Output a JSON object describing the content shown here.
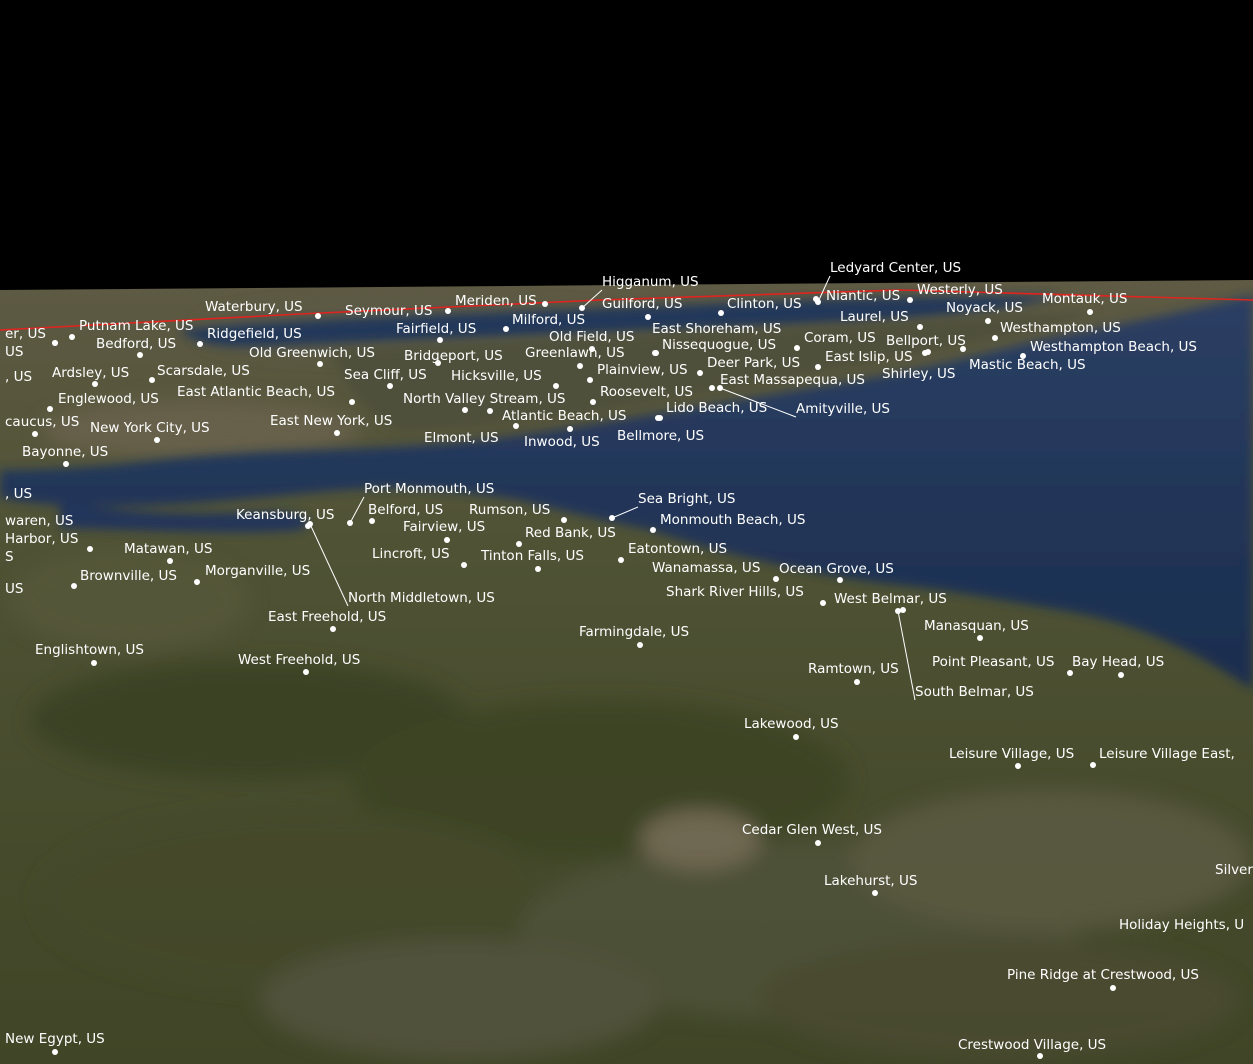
{
  "map": {
    "colors": {
      "sky": "#000000",
      "water": "#1f3558",
      "land": "#4a4c2c",
      "horizon_line": "#e0241f",
      "label": "#ffffff"
    },
    "places": [
      "Higganum, US",
      "Ledyard Center, US",
      "Waterbury, US",
      "Seymour, US",
      "Meriden, US",
      "Guilford, US",
      "Clinton, US",
      "Niantic, US",
      "Westerly, US",
      "Montauk, US",
      "er, US",
      "Putnam Lake, US",
      "Ridgefield, US",
      "Fairfield, US",
      "Milford, US",
      "Old Field, US",
      "East Shoreham, US",
      "Laurel, US",
      "Noyack, US",
      "Westhampton, US",
      "US",
      "Bedford, US",
      "Old Greenwich, US",
      "Bridgeport, US",
      "Greenlawn, US",
      "Nissequogue, US",
      "Coram, US",
      "Bellport, US",
      "Westhampton Beach, US",
      ", US",
      "Ardsley, US",
      "Scarsdale, US",
      "Sea Cliff, US",
      "Hicksville, US",
      "Plainview, US",
      "Deer Park, US",
      "East Islip, US",
      "Mastic Beach, US",
      "Shirley, US",
      "East Massapequa, US",
      "Englewood, US",
      "East Atlantic Beach, US",
      "North Valley Stream, US",
      "Roosevelt, US",
      "Amityville, US",
      "caucus, US",
      "New York City, US",
      "East New York, US",
      "Atlantic Beach, US",
      "Lido Beach, US",
      "Elmont, US",
      "Inwood, US",
      "Bellmore, US",
      "Bayonne, US",
      ", US",
      "Port Monmouth, US",
      "Sea Bright, US",
      "waren, US",
      "Keansburg, US",
      "Belford, US",
      "Rumson, US",
      "Monmouth Beach, US",
      "Fairview, US",
      "Red Bank, US",
      "Harbor, US",
      "Matawan, US",
      "Lincroft, US",
      "Tinton Falls, US",
      "Eatontown, US",
      "S",
      "Wanamassa, US",
      "Ocean Grove, US",
      "US",
      "Brownville, US",
      "Morganville, US",
      "Shark River Hills, US",
      "West Belmar, US",
      "North Middletown, US",
      "East Freehold, US",
      "Farmingdale, US",
      "Manasquan, US",
      "Englishtown, US",
      "West Freehold, US",
      "Ramtown, US",
      "Point Pleasant, US",
      "Bay Head, US",
      "South Belmar, US",
      "Lakewood, US",
      "Leisure Village, US",
      "Leisure Village East,",
      "Cedar Glen West, US",
      "Lakehurst, US",
      "Silver",
      "Holiday Heights, U",
      "Pine Ridge at Crestwood, US",
      "New Egypt, US",
      "Crestwood Village, US"
    ]
  }
}
